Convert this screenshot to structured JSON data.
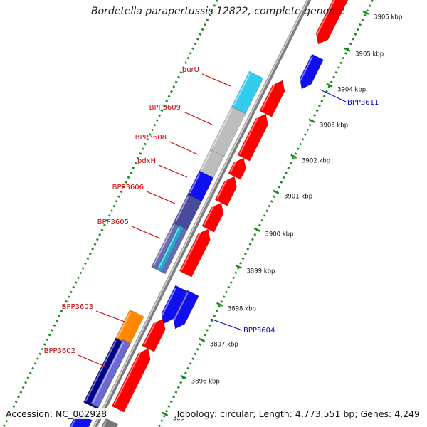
{
  "title": "Bordetella parapertussis 12822, complete genome",
  "accession_text": "Accession: NC_002928",
  "summary_text": "Topology: circular; Length: 4,773,551 bp; Genes: 4,249",
  "colors": {
    "forward": "#ff0000",
    "reverse": "#1010ee",
    "backbone": "#8a8a8a",
    "tick_outer": "#1a8a1a",
    "label_red": "#cc0000",
    "label_blue": "#0000cc",
    "purU": "#33ccee",
    "grey_gene": "#bdbdbd",
    "purple_gene": "#4a4a9a",
    "teal_gene": "#22aacc",
    "orange_gene": "#ff8800",
    "navy_gene": "#00008a"
  },
  "scale_ticks": [
    {
      "label": "3906 kbp"
    },
    {
      "label": "3905 kbp"
    },
    {
      "label": "3904 kbp"
    },
    {
      "label": "3903 kbp"
    },
    {
      "label": "3902 kbp"
    },
    {
      "label": "3901 kbp"
    },
    {
      "label": "3900 kbp"
    },
    {
      "label": "3899 kbp"
    },
    {
      "label": "3898 kbp"
    },
    {
      "label": "3897 kbp"
    },
    {
      "label": "3896 kbp"
    },
    {
      "label": "389"
    }
  ],
  "gene_labels": [
    {
      "name": "purU",
      "strand": "forward"
    },
    {
      "name": "BPP3609",
      "strand": "forward"
    },
    {
      "name": "BPP3608",
      "strand": "forward"
    },
    {
      "name": "pdxH",
      "strand": "forward"
    },
    {
      "name": "BPP3606",
      "strand": "forward"
    },
    {
      "name": "BPP3605",
      "strand": "forward"
    },
    {
      "name": "BPP3603",
      "strand": "forward"
    },
    {
      "name": "BPP3602",
      "strand": "forward"
    },
    {
      "name": "BPP3611",
      "strand": "reverse"
    },
    {
      "name": "BPP3604",
      "strand": "reverse"
    }
  ]
}
